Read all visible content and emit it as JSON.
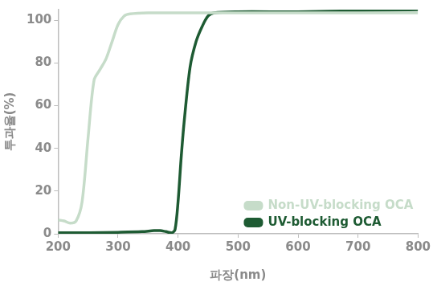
{
  "chart_data": {
    "type": "line",
    "x_label": "파장(nm)",
    "y_label": "투과율(%)",
    "xlim": [
      200,
      800
    ],
    "xticks": [
      200,
      300,
      400,
      500,
      600,
      700,
      800
    ],
    "ylim": [
      0,
      105
    ],
    "yticks": [
      0,
      20,
      40,
      60,
      80,
      100
    ],
    "grid": false,
    "legend": "lower right",
    "series": [
      {
        "name": "Non-UV-blocking OCA",
        "color": "#c6dcc9",
        "x": [
          200,
          210,
          220,
          230,
          240,
          250,
          260,
          270,
          280,
          290,
          300,
          310,
          320,
          350,
          400,
          450,
          500,
          600,
          700,
          800
        ],
        "values": [
          6.5,
          6,
          5,
          6,
          15,
          45,
          72,
          77,
          82,
          90,
          98,
          102,
          103,
          103.5,
          103.5,
          103.5,
          103.5,
          103.5,
          103.5,
          103.5
        ]
      },
      {
        "name": "UV-blocking OCA",
        "color": "#1e5b33",
        "x": [
          200,
          250,
          300,
          340,
          360,
          370,
          380,
          390,
          395,
          400,
          405,
          410,
          420,
          430,
          440,
          450,
          460,
          500,
          600,
          700,
          800
        ],
        "values": [
          0.5,
          0.5,
          0.7,
          1,
          1.5,
          1.5,
          1,
          0.5,
          2,
          15,
          35,
          52,
          78,
          90,
          97,
          102,
          103.5,
          104,
          104,
          104.5,
          105
        ]
      }
    ]
  }
}
